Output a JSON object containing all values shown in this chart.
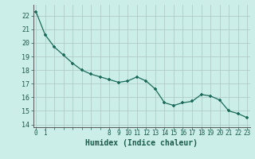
{
  "x": [
    0,
    1,
    2,
    3,
    4,
    5,
    6,
    7,
    8,
    9,
    10,
    11,
    12,
    13,
    14,
    15,
    16,
    17,
    18,
    19,
    20,
    21,
    22,
    23
  ],
  "y": [
    22.3,
    20.6,
    19.7,
    19.1,
    18.5,
    18.0,
    17.7,
    17.5,
    17.3,
    17.1,
    17.2,
    17.5,
    17.2,
    16.6,
    15.6,
    15.4,
    15.6,
    15.7,
    16.2,
    16.1,
    15.8,
    15.0,
    14.8,
    14.5
  ],
  "xlabel": "Humidex (Indice chaleur)",
  "ylim": [
    14,
    22.5
  ],
  "yticks": [
    14,
    15,
    16,
    17,
    18,
    19,
    20,
    21,
    22
  ],
  "xtick_show": [
    0,
    1,
    8,
    9,
    10,
    11,
    12,
    13,
    14,
    15,
    16,
    17,
    18,
    19,
    20,
    21,
    22,
    23
  ],
  "line_color": "#1a6b5a",
  "bg_color": "#cceee8",
  "grid_color": "#b0ccc8",
  "text_color": "#1a5a4a"
}
